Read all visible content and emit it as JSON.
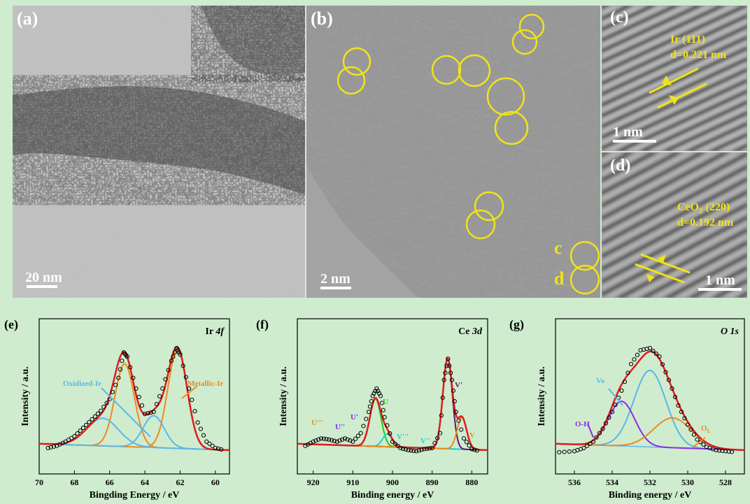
{
  "panels": {
    "a": {
      "label": "(a)",
      "scale": "20 nm"
    },
    "b": {
      "label": "(b)",
      "scale": "2 nm",
      "marks": [
        "c",
        "d"
      ]
    },
    "c": {
      "label": "(c)",
      "scale": "1 nm",
      "annot1": "Ir (111)",
      "annot2": "d=0.221 nm"
    },
    "d": {
      "label": "(d)",
      "scale": "1 nm",
      "annot1_main": "CeO",
      "annot1_sub": "2",
      "annot1_rest": " (220)",
      "annot2": "d=0.192 nm"
    }
  },
  "colors": {
    "bg": "#cfeccf",
    "yellow": "#f0e31a",
    "red": "#e01c1c",
    "orange": "#ee8a1a",
    "blue": "#5ab8e8",
    "purple": "#8a2be2",
    "green": "#18d018",
    "cyan": "#22d0d0",
    "darkpurple": "#6a1070"
  },
  "chart_data": [
    {
      "type": "line",
      "label": "(e)",
      "title_main": "Ir ",
      "title_italic": "4f",
      "xlabel": "Bingding Energy / eV",
      "ylabel": "Intensity / a.u.",
      "xlim": [
        70,
        59.2
      ],
      "xticks": [
        "70",
        "68",
        "66",
        "64",
        "62",
        "60"
      ],
      "annotations": [
        "Oxidized-Ir",
        "Metallic-Ir"
      ],
      "series": [
        {
          "role": "raw",
          "x": [
            69.5,
            69,
            68.5,
            68,
            67.5,
            67,
            66.5,
            66,
            65.5,
            65.2,
            65,
            64.5,
            64,
            63.5,
            63,
            62.5,
            62.2,
            62,
            61.5,
            61,
            60.5,
            60,
            59.5
          ],
          "y": [
            0.06,
            0.08,
            0.12,
            0.17,
            0.25,
            0.33,
            0.41,
            0.52,
            0.72,
            0.96,
            0.92,
            0.62,
            0.38,
            0.4,
            0.62,
            0.88,
            1.0,
            0.94,
            0.62,
            0.3,
            0.12,
            0.06,
            0.04
          ]
        },
        {
          "role": "fit",
          "color": "red"
        },
        {
          "role": "component",
          "center": 65.15,
          "height": 0.78,
          "width": 0.55,
          "color": "orange"
        },
        {
          "role": "component",
          "center": 62.15,
          "height": 0.93,
          "width": 0.55,
          "color": "orange"
        },
        {
          "role": "component",
          "center": 66.4,
          "height": 0.26,
          "width": 0.9,
          "color": "blue"
        },
        {
          "role": "component",
          "center": 63.5,
          "height": 0.3,
          "width": 0.6,
          "color": "blue"
        }
      ]
    },
    {
      "type": "line",
      "label": "(f)",
      "title_main": "Ce ",
      "title_italic": "3d",
      "xlabel": "Binding energy / eV",
      "ylabel": "Intensity / a.u.",
      "xlim": [
        924,
        876
      ],
      "xticks": [
        "920",
        "910",
        "900",
        "890",
        "880"
      ],
      "peak_labels": [
        "U'''",
        "U''",
        "U'",
        "U",
        "V'''",
        "V''",
        "V'",
        "V"
      ],
      "series": [
        {
          "role": "raw",
          "x": [
            922,
            920,
            918,
            916,
            914,
            912,
            910,
            908,
            906,
            905,
            904,
            903,
            902,
            900,
            898,
            896,
            894,
            892,
            890,
            888,
            887,
            886,
            885,
            884,
            882,
            880,
            878
          ],
          "y": [
            0.08,
            0.12,
            0.15,
            0.14,
            0.12,
            0.15,
            0.12,
            0.2,
            0.4,
            0.55,
            0.62,
            0.55,
            0.35,
            0.12,
            0.06,
            0.04,
            0.03,
            0.05,
            0.06,
            0.2,
            0.7,
            0.9,
            0.7,
            0.4,
            0.15,
            0.05,
            0.03
          ]
        },
        {
          "role": "fit",
          "color": "red"
        },
        {
          "role": "component",
          "center": 904.3,
          "height": 0.45,
          "width": 1.4,
          "color": "green"
        },
        {
          "role": "component",
          "center": 901.3,
          "height": 0.12,
          "width": 1.2,
          "color": "cyan"
        },
        {
          "role": "component",
          "center": 886.1,
          "height": 0.85,
          "width": 1.2,
          "color": "darkpurple"
        },
        {
          "role": "component",
          "center": 882.5,
          "height": 0.3,
          "width": 1.2,
          "color": "orange"
        }
      ]
    },
    {
      "type": "line",
      "label": "(g)",
      "title_main": "",
      "title_italic": "O 1s",
      "xlabel": "Binding energy / eV",
      "ylabel": "Intensity / a.u.",
      "xlim": [
        537,
        527
      ],
      "xticks": [
        "536",
        "534",
        "532",
        "530",
        "528"
      ],
      "annotations": [
        "Vo",
        "O-H",
        "O"
      ],
      "annotation_subs": [
        "",
        "",
        "L"
      ],
      "series": [
        {
          "role": "raw",
          "x": [
            536.8,
            536,
            535.5,
            535,
            534.5,
            534,
            533.5,
            533,
            532.5,
            532,
            531.5,
            531,
            530.5,
            530,
            529.5,
            529,
            528.5,
            528,
            527.5
          ],
          "y": [
            0.02,
            0.03,
            0.06,
            0.12,
            0.24,
            0.4,
            0.6,
            0.85,
            0.98,
            1.0,
            0.92,
            0.7,
            0.46,
            0.28,
            0.14,
            0.07,
            0.04,
            0.03,
            0.02
          ]
        },
        {
          "role": "fit",
          "color": "red"
        },
        {
          "role": "component",
          "center": 532.0,
          "height": 0.72,
          "width": 0.85,
          "color": "blue"
        },
        {
          "role": "component",
          "center": 533.5,
          "height": 0.42,
          "width": 0.7,
          "color": "purple"
        },
        {
          "role": "component",
          "center": 530.8,
          "height": 0.28,
          "width": 1.0,
          "color": "orange"
        }
      ]
    }
  ]
}
